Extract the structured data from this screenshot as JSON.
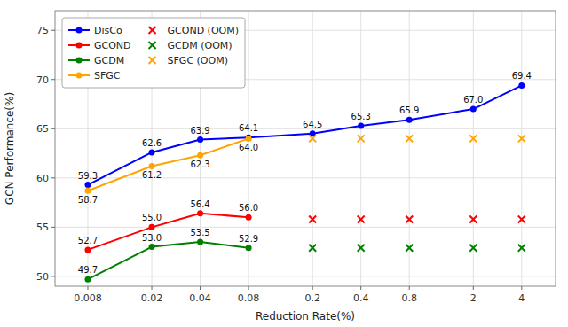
{
  "chart_data": {
    "type": "line",
    "log": "x",
    "grid": true,
    "legend": "upper left",
    "xlabel": "Reduction Rate(%)",
    "ylabel": "GCN Performance(%)",
    "x": [
      0.008,
      0.02,
      0.04,
      0.08,
      0.2,
      0.4,
      0.8,
      2,
      4
    ],
    "xlim": [
      0.005,
      6.5
    ],
    "xticks": [
      0.008,
      0.02,
      0.04,
      0.08,
      0.2,
      0.4,
      0.8,
      2,
      4
    ],
    "ylim": [
      49,
      77
    ],
    "yticks": [
      50,
      55,
      60,
      65,
      70,
      75
    ],
    "series": [
      {
        "name": "DisCo",
        "color": "#0000ff",
        "type": "line",
        "marker": "circle",
        "data_labels": true,
        "values": [
          59.3,
          62.6,
          63.9,
          64.1,
          64.5,
          65.3,
          65.9,
          67.0,
          69.4
        ],
        "value_labels": [
          "59.3",
          "62.6",
          "63.9",
          "64.1",
          "64.5",
          "65.3",
          "65.9",
          "67.0",
          "69.4"
        ]
      },
      {
        "name": "GCOND",
        "color": "#ff0000",
        "type": "line",
        "marker": "circle",
        "data_labels": true,
        "values": [
          52.7,
          55.0,
          56.4,
          56.0,
          null,
          null,
          null,
          null,
          null
        ],
        "value_labels": [
          "52.7",
          "55.0",
          "56.4",
          "56.0",
          null,
          null,
          null,
          null,
          null
        ]
      },
      {
        "name": "GCDM",
        "color": "#008000",
        "type": "line",
        "marker": "circle",
        "data_labels": true,
        "values": [
          49.7,
          53.0,
          53.5,
          52.9,
          null,
          null,
          null,
          null,
          null
        ],
        "value_labels": [
          "49.7",
          "53.0",
          "53.5",
          "52.9",
          null,
          null,
          null,
          null,
          null
        ]
      },
      {
        "name": "SFGC",
        "color": "#ffa500",
        "type": "line",
        "marker": "circle",
        "data_labels": true,
        "values": [
          58.7,
          61.2,
          62.3,
          64.0,
          null,
          null,
          null,
          null,
          null
        ],
        "value_labels": [
          "58.7",
          "61.2",
          "62.3",
          "64.0",
          null,
          null,
          null,
          null,
          null
        ]
      },
      {
        "name": "GCOND (OOM)",
        "color": "#ff0000",
        "type": "scatter",
        "marker": "x",
        "values": [
          null,
          null,
          null,
          null,
          55.8,
          55.8,
          55.8,
          55.8,
          55.8
        ]
      },
      {
        "name": "GCDM (OOM)",
        "color": "#008000",
        "type": "scatter",
        "marker": "x",
        "values": [
          null,
          null,
          null,
          null,
          52.9,
          52.9,
          52.9,
          52.9,
          52.9
        ]
      },
      {
        "name": "SFGC (OOM)",
        "color": "#ffa500",
        "type": "scatter",
        "marker": "x",
        "values": [
          null,
          null,
          null,
          null,
          64.0,
          64.0,
          64.0,
          64.0,
          64.0
        ]
      }
    ]
  }
}
